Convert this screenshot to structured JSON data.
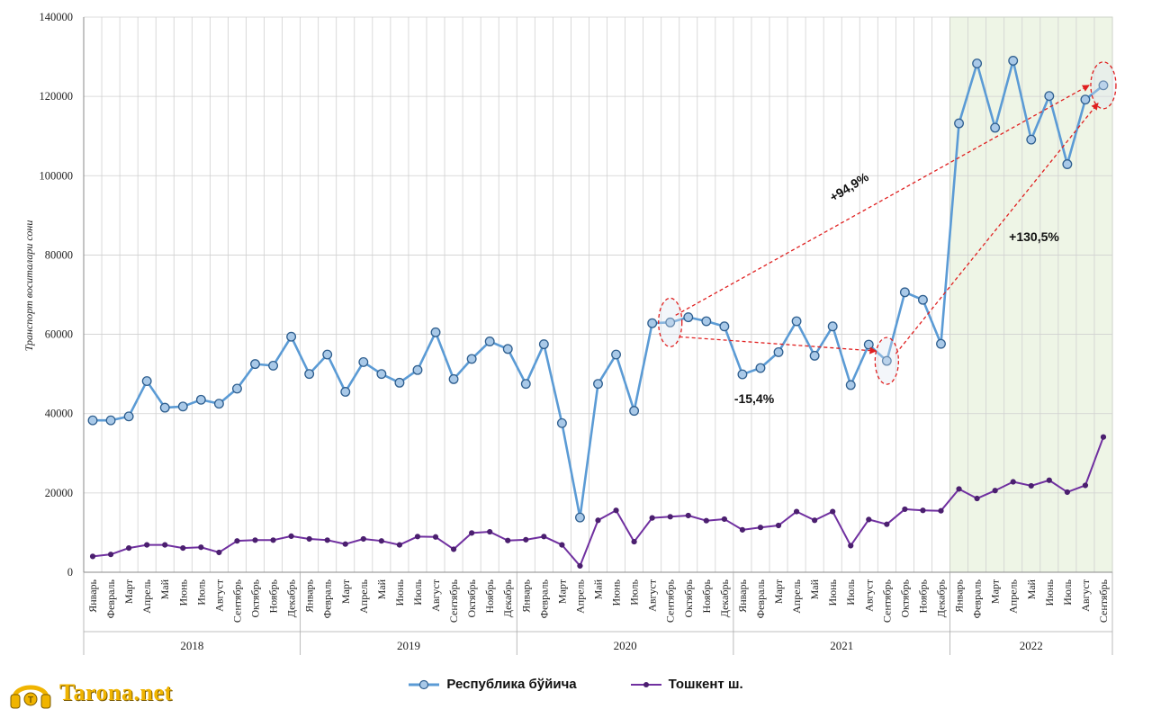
{
  "colors": {
    "republic_line": "#5b9bd5",
    "republic_marker_fill": "#a9c9e8",
    "republic_marker_stroke": "#2f5f8f",
    "tashkent_line": "#7030a0",
    "tashkent_marker": "#4b1f6f",
    "highlight_bg": "#eef5e6",
    "annotation": "#e02020",
    "grid": "#d0d0d0",
    "logo": "#f0b400"
  },
  "logo": {
    "text": "Tarona.net",
    "icon": "headphones-icon"
  },
  "chart_data": {
    "type": "line",
    "ylabel": "Транспорт воситалари сони",
    "ylim": [
      0,
      140000
    ],
    "yticks": [
      0,
      20000,
      40000,
      60000,
      80000,
      100000,
      120000,
      140000
    ],
    "grid": true,
    "legend_position": "bottom",
    "highlighted_year": "2022",
    "years": [
      {
        "label": "2018",
        "months": [
          "Январь",
          "Февраль",
          "Март",
          "Апрель",
          "Май",
          "Июнь",
          "Июль",
          "Август",
          "Сентябрь",
          "Октябрь",
          "Ноябрь",
          "Декабрь"
        ]
      },
      {
        "label": "2019",
        "months": [
          "Январь",
          "Февраль",
          "Март",
          "Апрель",
          "Май",
          "Июнь",
          "Июль",
          "Август",
          "Сентябрь",
          "Октябрь",
          "Ноябрь",
          "Декабрь"
        ]
      },
      {
        "label": "2020",
        "months": [
          "Январь",
          "Февраль",
          "Март",
          "Апрель",
          "Май",
          "Июнь",
          "Июль",
          "Август",
          "Сентябрь",
          "Октябрь",
          "Ноябрь",
          "Декабрь"
        ]
      },
      {
        "label": "2021",
        "months": [
          "Январь",
          "Февраль",
          "Март",
          "Апрель",
          "Май",
          "Июнь",
          "Июль",
          "Август",
          "Сентябрь",
          "Октябрь",
          "Ноябрь",
          "Декабрь"
        ]
      },
      {
        "label": "2022",
        "months": [
          "Январь",
          "Февраль",
          "Март",
          "Апрель",
          "Май",
          "Июнь",
          "Июль",
          "Август",
          "Сентябрь"
        ]
      }
    ],
    "series": [
      {
        "name": "Республика бўйича",
        "values": [
          38300,
          38300,
          39300,
          48200,
          41500,
          41800,
          43500,
          42500,
          46300,
          52500,
          52100,
          59400,
          50000,
          54900,
          45500,
          53000,
          50000,
          47800,
          51000,
          60500,
          48700,
          53800,
          58200,
          56300,
          47500,
          57500,
          37600,
          13800,
          47500,
          54900,
          40700,
          62800,
          63000,
          64300,
          63300,
          62000,
          49900,
          51500,
          55500,
          63300,
          54600,
          62000,
          47200,
          57400,
          53300,
          70600,
          68700,
          57600,
          113200,
          128300,
          112100,
          129000,
          109100,
          120100,
          102900,
          119200,
          122800
        ]
      },
      {
        "name": "Тошкент ш.",
        "values": [
          4000,
          4500,
          6100,
          6900,
          6900,
          6100,
          6300,
          5000,
          7900,
          8100,
          8100,
          9100,
          8400,
          8100,
          7100,
          8400,
          7900,
          6900,
          9000,
          8900,
          5800,
          9900,
          10200,
          8000,
          8200,
          9000,
          6900,
          1600,
          13100,
          15600,
          7700,
          13700,
          14000,
          14300,
          13000,
          13400,
          10700,
          11300,
          11800,
          15300,
          13100,
          15300,
          6700,
          13300,
          12100,
          15900,
          15600,
          15500,
          21000,
          18600,
          20600,
          22800,
          21800,
          23200,
          20200,
          21900,
          34100
        ]
      }
    ],
    "annotations": [
      {
        "text": "+94,9%"
      },
      {
        "text": "-15,4%"
      },
      {
        "text": "+130,5%"
      }
    ]
  }
}
